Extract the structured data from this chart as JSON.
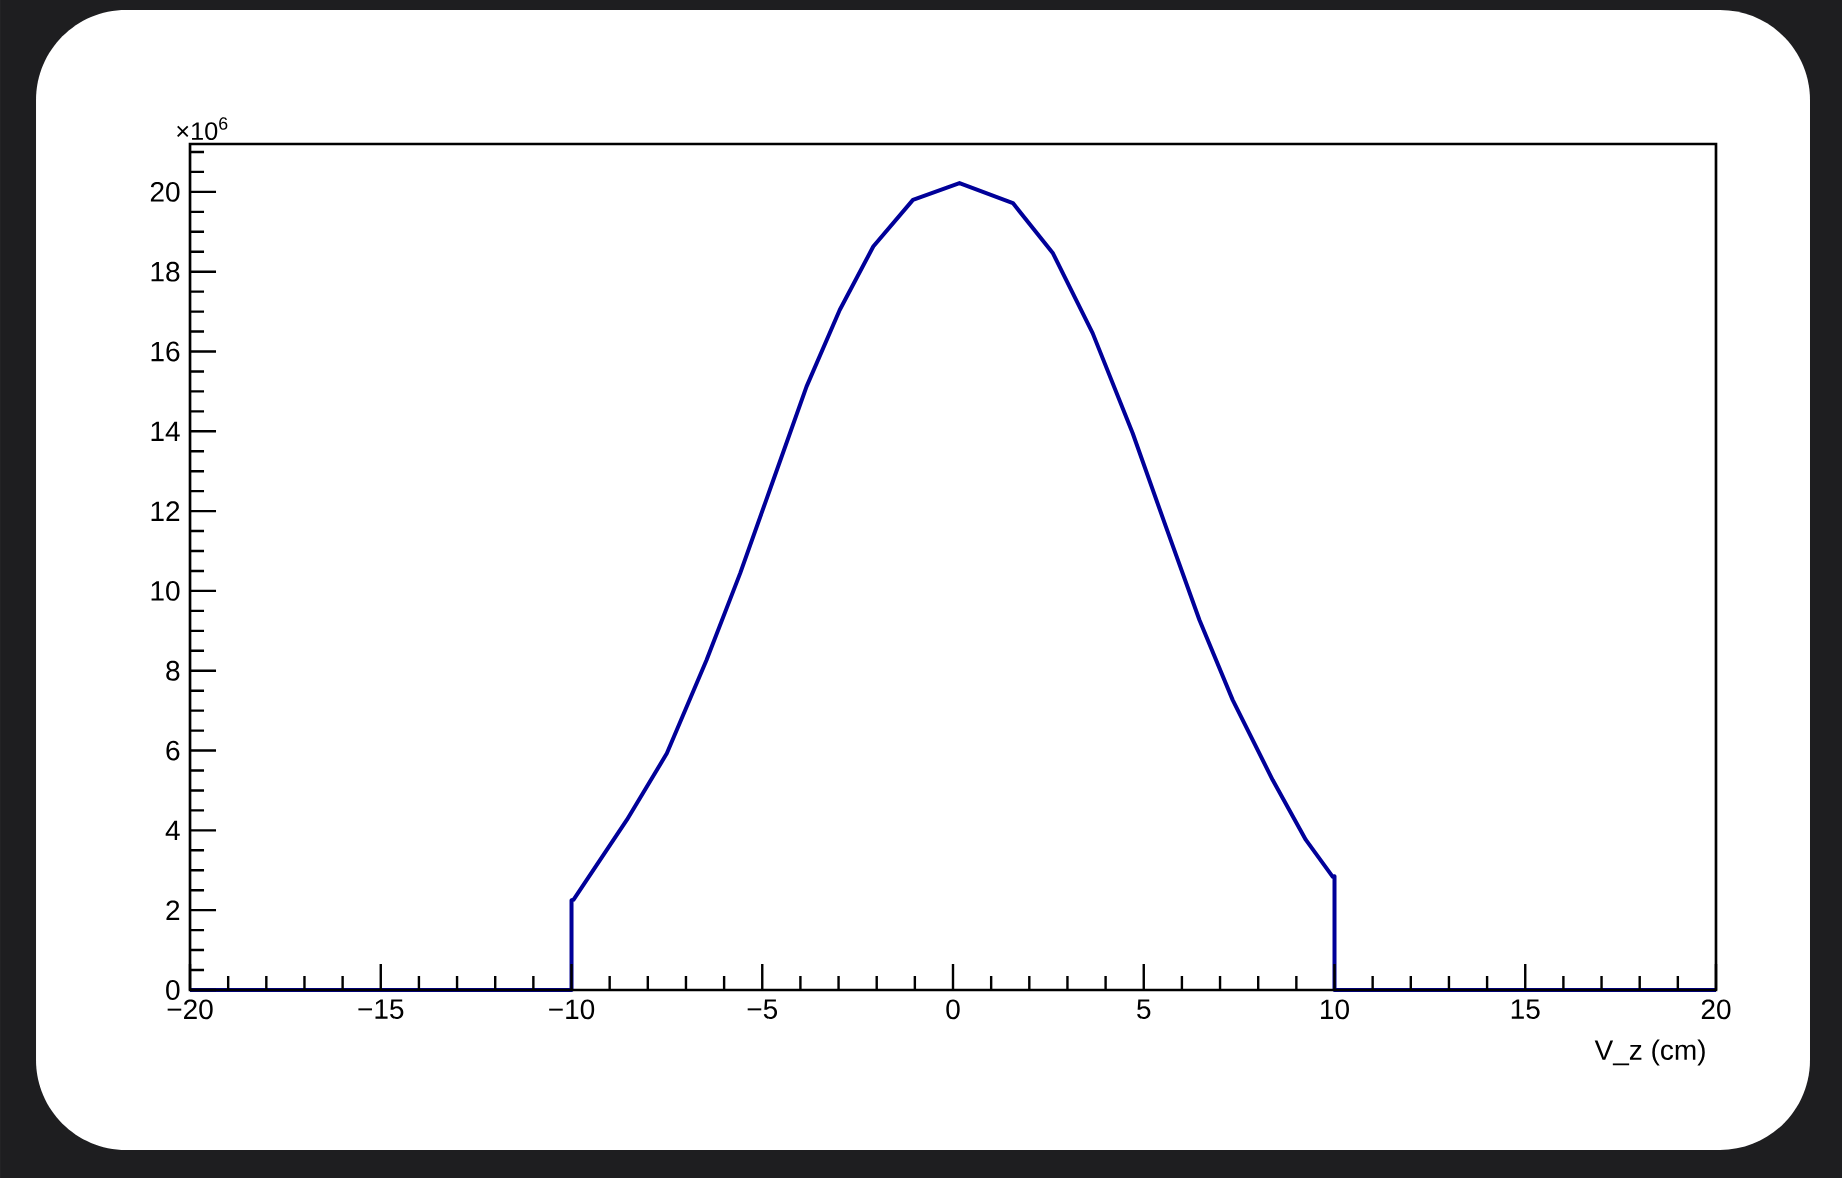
{
  "chart_data": {
    "type": "line",
    "xlabel": "V_z (cm)",
    "annotations": [
      "×10$^{6}$"
    ],
    "xlim": [
      -20,
      20
    ],
    "ylim": [
      0,
      21.2
    ],
    "xticks": [
      {
        "value": -20,
        "label": "−20"
      },
      {
        "value": -19,
        "label": null
      },
      {
        "value": -18,
        "label": null
      },
      {
        "value": -17,
        "label": null
      },
      {
        "value": -16,
        "label": null
      },
      {
        "value": -15,
        "label": "−15"
      },
      {
        "value": -14,
        "label": null
      },
      {
        "value": -13,
        "label": null
      },
      {
        "value": -12,
        "label": null
      },
      {
        "value": -11,
        "label": null
      },
      {
        "value": -10,
        "label": "−10"
      },
      {
        "value": -9,
        "label": null
      },
      {
        "value": -8,
        "label": null
      },
      {
        "value": -7,
        "label": null
      },
      {
        "value": -6,
        "label": null
      },
      {
        "value": -5,
        "label": "−5"
      },
      {
        "value": -4,
        "label": null
      },
      {
        "value": -3,
        "label": null
      },
      {
        "value": -2,
        "label": null
      },
      {
        "value": -1,
        "label": null
      },
      0,
      {
        "value": 1,
        "label": null
      },
      {
        "value": 2,
        "label": null
      },
      {
        "value": 3,
        "label": null
      },
      {
        "value": 4,
        "label": null
      },
      5,
      {
        "value": 6,
        "label": null
      },
      {
        "value": 7,
        "label": null
      },
      {
        "value": 8,
        "label": null
      },
      {
        "value": 9,
        "label": null
      },
      10,
      {
        "value": 11,
        "label": null
      },
      {
        "value": 12,
        "label": null
      },
      {
        "value": 13,
        "label": null
      },
      {
        "value": 14,
        "label": null
      },
      15,
      {
        "value": 16,
        "label": null
      },
      {
        "value": 17,
        "label": null
      },
      {
        "value": 18,
        "label": null
      },
      {
        "value": 19,
        "label": null
      },
      20
    ],
    "yticks": [
      0,
      {
        "value": 0.5,
        "label": null
      },
      {
        "value": 1,
        "label": null
      },
      {
        "value": 1.5,
        "label": null
      },
      2,
      {
        "value": 2.5,
        "label": null
      },
      {
        "value": 3,
        "label": null
      },
      {
        "value": 3.5,
        "label": null
      },
      4,
      {
        "value": 4.5,
        "label": null
      },
      {
        "value": 5,
        "label": null
      },
      {
        "value": 5.5,
        "label": null
      },
      6,
      {
        "value": 6.5,
        "label": null
      },
      {
        "value": 7,
        "label": null
      },
      {
        "value": 7.5,
        "label": null
      },
      8,
      {
        "value": 8.5,
        "label": null
      },
      {
        "value": 9,
        "label": null
      },
      {
        "value": 9.5,
        "label": null
      },
      10,
      {
        "value": 10.5,
        "label": null
      },
      {
        "value": 11,
        "label": null
      },
      {
        "value": 11.5,
        "label": null
      },
      12,
      {
        "value": 12.5,
        "label": null
      },
      {
        "value": 13,
        "label": null
      },
      {
        "value": 13.5,
        "label": null
      },
      14,
      {
        "value": 14.5,
        "label": null
      },
      {
        "value": 15,
        "label": null
      },
      {
        "value": 15.5,
        "label": null
      },
      16,
      {
        "value": 16.5,
        "label": null
      },
      {
        "value": 17,
        "label": null
      },
      {
        "value": 17.5,
        "label": null
      },
      18,
      {
        "value": 18.5,
        "label": null
      },
      {
        "value": 19,
        "label": null
      },
      {
        "value": 19.5,
        "label": null
      },
      20,
      {
        "value": 20.5,
        "label": null
      },
      {
        "value": 21,
        "label": null
      }
    ],
    "grid": false,
    "marker": "none",
    "line_style": "solid",
    "series": [
      {
        "color": "#000099",
        "x": [
          -20,
          -10,
          -10,
          -9.95,
          -8.55,
          -7.5,
          -6.46,
          -5.58,
          -4.71,
          -3.84,
          -2.97,
          -2.09,
          -1.05,
          0.17,
          1.57,
          2.62,
          3.66,
          4.71,
          5.58,
          6.46,
          7.33,
          8.38,
          9.25,
          9.95,
          10,
          10,
          20
        ],
        "values": [
          0,
          0,
          2.25,
          2.26,
          4.26,
          5.93,
          8.27,
          10.44,
          12.78,
          15.12,
          17.04,
          18.63,
          19.8,
          20.22,
          19.72,
          18.46,
          16.46,
          13.95,
          11.61,
          9.27,
          7.27,
          5.26,
          3.76,
          2.84,
          2.85,
          0,
          0
        ]
      }
    ]
  }
}
